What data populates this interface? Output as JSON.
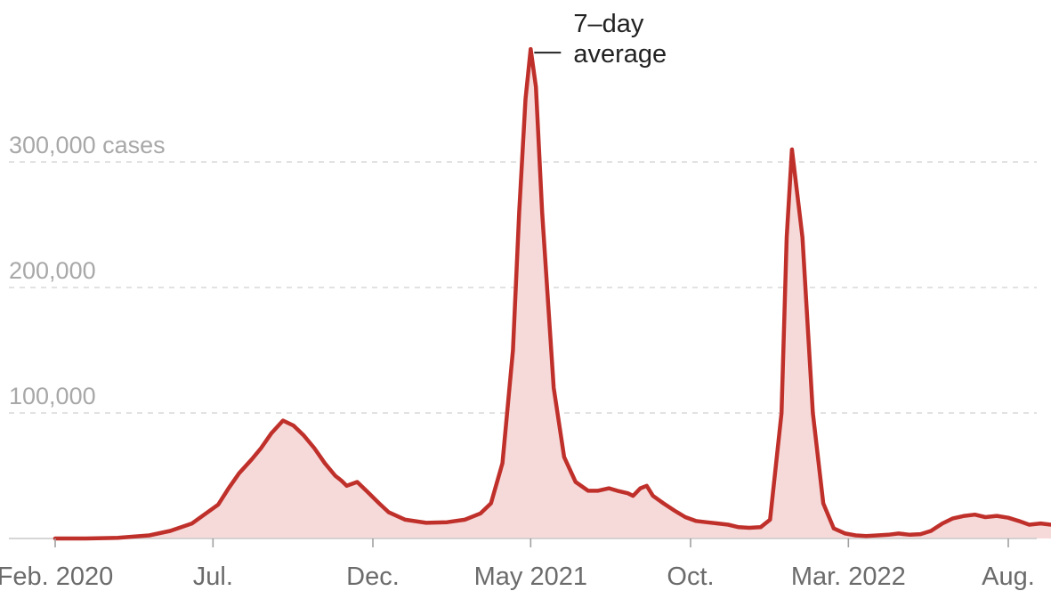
{
  "chart_data": {
    "type": "area",
    "title": "",
    "xlabel": "",
    "ylabel": "",
    "ylim": [
      0,
      400000
    ],
    "xlim": [
      "2020-01-27",
      "2022-09-15"
    ],
    "grid": true,
    "colors": {
      "line": "#c0302b",
      "fill": "#f6dada"
    },
    "y_ticks": [
      {
        "value": 100000,
        "label": "100,000"
      },
      {
        "value": 200000,
        "label": "200,000"
      },
      {
        "value": 300000,
        "label": "300,000 cases"
      }
    ],
    "x_ticks": [
      {
        "date": "2020-02-01",
        "label": "Feb. 2020"
      },
      {
        "date": "2020-07-01",
        "label": "Jul."
      },
      {
        "date": "2020-12-01",
        "label": "Dec."
      },
      {
        "date": "2021-05-01",
        "label": "May 2021"
      },
      {
        "date": "2021-10-01",
        "label": "Oct."
      },
      {
        "date": "2022-03-01",
        "label": "Mar. 2022"
      },
      {
        "date": "2022-08-01",
        "label": "Aug."
      }
    ],
    "annotation": {
      "lines": [
        "7–day",
        "average"
      ],
      "date": "2021-05-01",
      "value": 390000
    },
    "series": [
      {
        "x": [
          "2020-02-01",
          "2020-03-01",
          "2020-04-01",
          "2020-05-01",
          "2020-05-21",
          "2020-06-11",
          "2020-06-21",
          "2020-07-06",
          "2020-07-16",
          "2020-07-26",
          "2020-08-07",
          "2020-08-16",
          "2020-08-26",
          "2020-09-06",
          "2020-09-16",
          "2020-09-26",
          "2020-10-06",
          "2020-10-16",
          "2020-10-26",
          "2020-11-01",
          "2020-11-06",
          "2020-11-16",
          "2020-11-26",
          "2020-12-07",
          "2020-12-16",
          "2021-01-01",
          "2021-01-21",
          "2021-02-10",
          "2021-02-27",
          "2021-03-14",
          "2021-03-24",
          "2021-04-04",
          "2021-04-14",
          "2021-04-20",
          "2021-04-26",
          "2021-05-01",
          "2021-05-06",
          "2021-05-12",
          "2021-05-23",
          "2021-06-02",
          "2021-06-13",
          "2021-06-25",
          "2021-07-04",
          "2021-07-15",
          "2021-07-23",
          "2021-08-02",
          "2021-08-07",
          "2021-08-14",
          "2021-08-20",
          "2021-08-26",
          "2021-09-05",
          "2021-09-16",
          "2021-09-26",
          "2021-10-06",
          "2021-10-16",
          "2021-10-27",
          "2021-11-06",
          "2021-11-16",
          "2021-11-26",
          "2021-12-07",
          "2021-12-16",
          "2021-12-27",
          "2022-01-01",
          "2022-01-06",
          "2022-01-16",
          "2022-01-26",
          "2022-02-05",
          "2022-02-15",
          "2022-02-26",
          "2022-03-08",
          "2022-03-18",
          "2022-03-29",
          "2022-04-08",
          "2022-04-18",
          "2022-04-29",
          "2022-05-09",
          "2022-05-19",
          "2022-05-30",
          "2022-06-09",
          "2022-06-20",
          "2022-06-30",
          "2022-07-10",
          "2022-07-21",
          "2022-08-01",
          "2022-08-11",
          "2022-08-21",
          "2022-09-01",
          "2022-09-11"
        ],
        "y": [
          0,
          0,
          500,
          2500,
          6000,
          12000,
          18000,
          27000,
          40000,
          52000,
          63000,
          72000,
          84000,
          94000,
          90000,
          82000,
          72000,
          60000,
          50000,
          46000,
          42000,
          45000,
          37000,
          28000,
          21000,
          15000,
          12500,
          13000,
          15000,
          20000,
          28000,
          60000,
          150000,
          260000,
          350000,
          390000,
          360000,
          260000,
          120000,
          65000,
          45000,
          38000,
          38000,
          40000,
          38000,
          36000,
          34000,
          40000,
          42000,
          34000,
          28000,
          22000,
          17000,
          14000,
          13000,
          12000,
          11000,
          9000,
          8500,
          9000,
          15000,
          100000,
          240000,
          310000,
          240000,
          100000,
          28000,
          8000,
          4000,
          2500,
          2000,
          2500,
          3000,
          4000,
          3000,
          3500,
          6000,
          12000,
          16000,
          18000,
          19000,
          17000,
          18000,
          16500,
          14000,
          11000,
          12000,
          11000
        ]
      }
    ]
  }
}
